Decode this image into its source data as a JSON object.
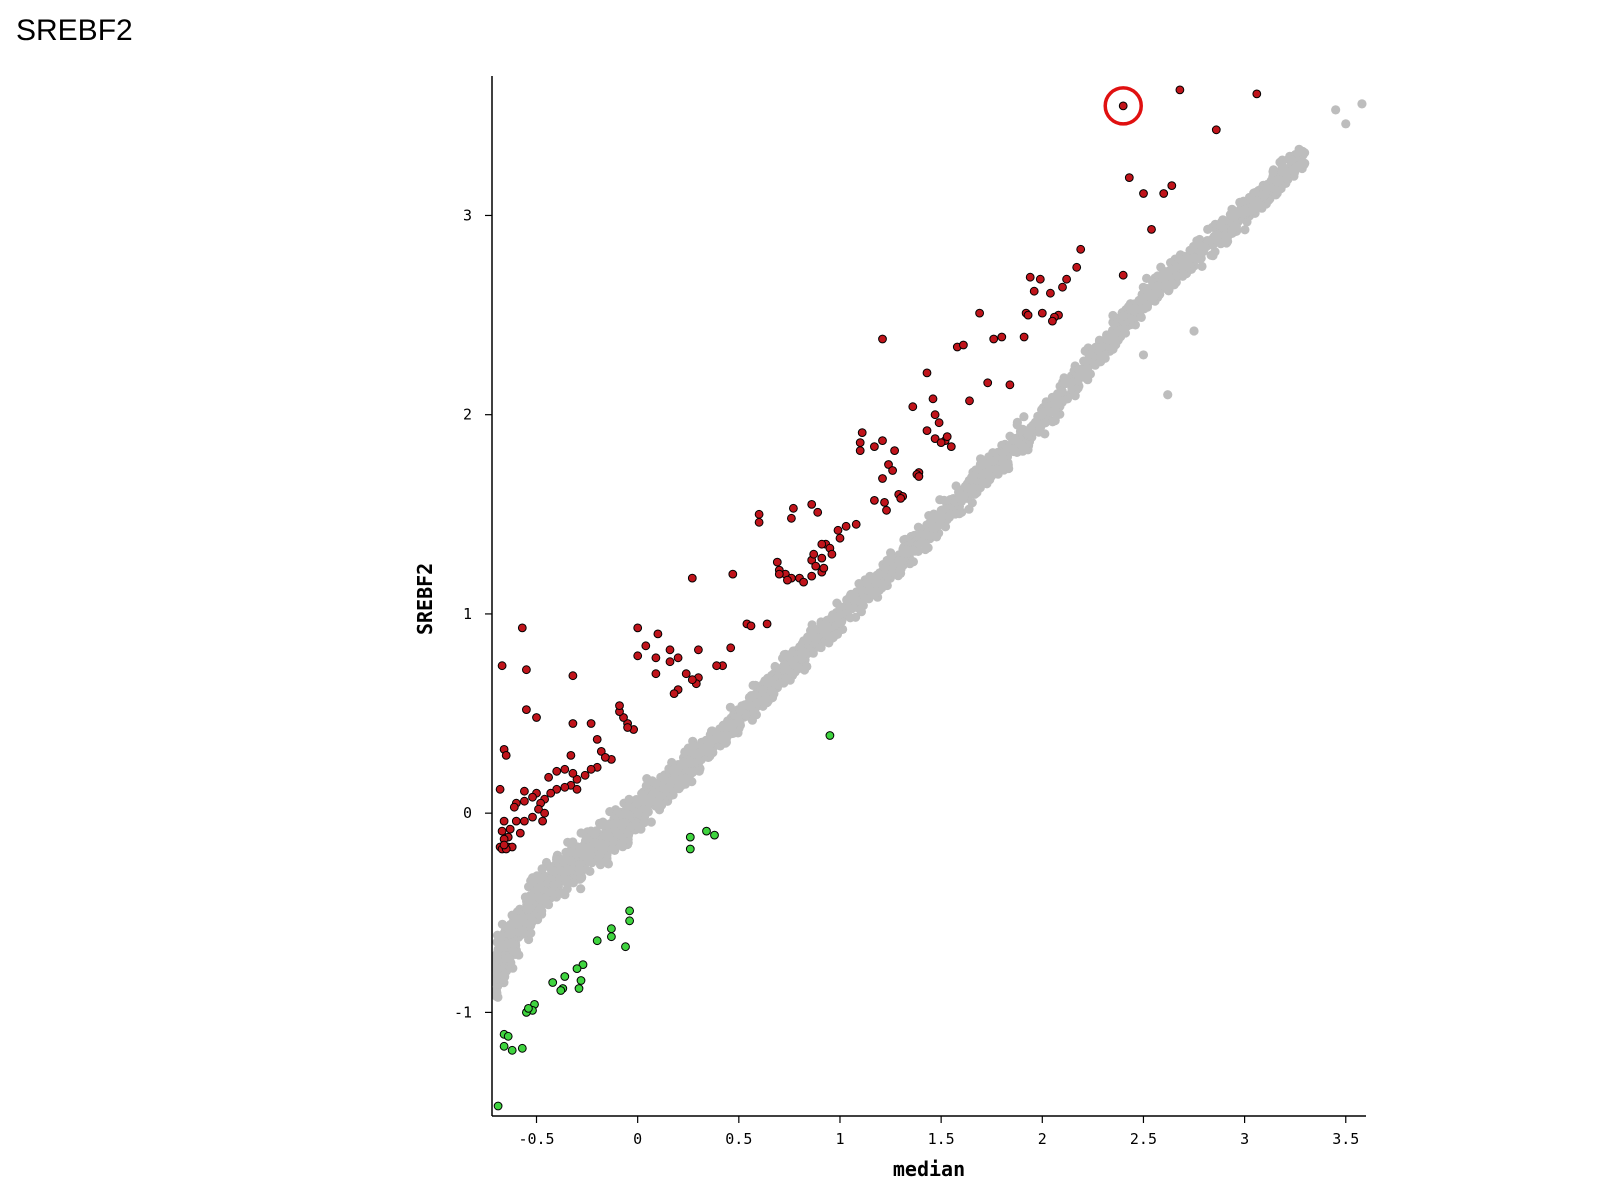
{
  "page_title": "SREBF2",
  "chart_data": {
    "type": "scatter",
    "title": "",
    "xlabel": "median",
    "ylabel": "SREBF2",
    "xlim": [
      -0.72,
      3.6
    ],
    "ylim": [
      -1.52,
      3.7
    ],
    "x_ticks": [
      "-0.5",
      "0",
      "0.5",
      "1",
      "1.5",
      "2",
      "2.5",
      "3",
      "3.5"
    ],
    "y_ticks": [
      "-1",
      "0",
      "1",
      "2",
      "3"
    ],
    "grid": false,
    "legend": "none",
    "colors": {
      "background_points": "#bdbdbd",
      "up": "#c0141b",
      "down": "#3fd43f",
      "highlight_circle": "#e01010"
    },
    "background_cloud": {
      "name": "",
      "color": "#bdbdbd",
      "trend": [
        [
          -0.7,
          -0.78
        ],
        [
          -0.5,
          -0.42
        ],
        [
          0,
          0.0
        ],
        [
          0.5,
          0.48
        ],
        [
          1,
          0.98
        ],
        [
          1.5,
          1.48
        ],
        [
          2,
          1.98
        ],
        [
          2.5,
          2.58
        ],
        [
          3,
          3.02
        ],
        [
          3.3,
          3.3
        ]
      ],
      "scattered_points": [
        [
          3.45,
          3.53
        ],
        [
          3.58,
          3.56
        ],
        [
          3.5,
          3.46
        ],
        [
          2.6,
          2.72
        ],
        [
          2.5,
          2.3
        ],
        [
          2.75,
          2.42
        ],
        [
          2.62,
          2.1
        ]
      ]
    },
    "series": [
      {
        "group": "up",
        "color": "#c0141b",
        "points": [
          [
            2.68,
            3.63
          ],
          [
            3.06,
            3.61
          ],
          [
            2.4,
            3.55
          ],
          [
            2.86,
            3.43
          ],
          [
            2.43,
            3.19
          ],
          [
            2.5,
            3.11
          ],
          [
            2.64,
            3.15
          ],
          [
            2.6,
            3.11
          ],
          [
            2.54,
            2.93
          ],
          [
            2.19,
            2.83
          ],
          [
            2.17,
            2.74
          ],
          [
            2.1,
            2.64
          ],
          [
            2.12,
            2.68
          ],
          [
            2.4,
            2.7
          ],
          [
            1.94,
            2.69
          ],
          [
            1.99,
            2.68
          ],
          [
            1.96,
            2.62
          ],
          [
            2.04,
            2.61
          ],
          [
            1.92,
            2.51
          ],
          [
            1.93,
            2.5
          ],
          [
            2.0,
            2.51
          ],
          [
            2.08,
            2.5
          ],
          [
            2.06,
            2.49
          ],
          [
            2.05,
            2.47
          ],
          [
            1.69,
            2.51
          ],
          [
            1.8,
            2.39
          ],
          [
            1.91,
            2.39
          ],
          [
            1.21,
            2.38
          ],
          [
            1.76,
            2.38
          ],
          [
            1.58,
            2.34
          ],
          [
            1.61,
            2.35
          ],
          [
            1.43,
            2.21
          ],
          [
            1.64,
            2.07
          ],
          [
            1.84,
            2.15
          ],
          [
            1.73,
            2.16
          ],
          [
            1.46,
            2.08
          ],
          [
            1.36,
            2.04
          ],
          [
            1.47,
            2.0
          ],
          [
            1.49,
            1.96
          ],
          [
            1.47,
            1.88
          ],
          [
            1.43,
            1.92
          ],
          [
            1.52,
            1.87
          ],
          [
            1.5,
            1.86
          ],
          [
            1.53,
            1.89
          ],
          [
            1.55,
            1.84
          ],
          [
            1.11,
            1.91
          ],
          [
            1.1,
            1.86
          ],
          [
            1.21,
            1.87
          ],
          [
            1.1,
            1.82
          ],
          [
            1.17,
            1.84
          ],
          [
            1.27,
            1.82
          ],
          [
            1.24,
            1.75
          ],
          [
            1.26,
            1.72
          ],
          [
            1.39,
            1.71
          ],
          [
            1.38,
            1.7
          ],
          [
            1.39,
            1.69
          ],
          [
            1.21,
            1.68
          ],
          [
            1.29,
            1.6
          ],
          [
            1.31,
            1.59
          ],
          [
            1.17,
            1.57
          ],
          [
            1.22,
            1.56
          ],
          [
            1.3,
            1.58
          ],
          [
            1.23,
            1.52
          ],
          [
            0.6,
            1.5
          ],
          [
            0.6,
            1.46
          ],
          [
            0.77,
            1.53
          ],
          [
            0.86,
            1.55
          ],
          [
            0.89,
            1.51
          ],
          [
            0.76,
            1.48
          ],
          [
            1.08,
            1.45
          ],
          [
            1.03,
            1.44
          ],
          [
            0.99,
            1.42
          ],
          [
            1.0,
            1.38
          ],
          [
            0.93,
            1.35
          ],
          [
            0.91,
            1.35
          ],
          [
            0.95,
            1.33
          ],
          [
            0.96,
            1.3
          ],
          [
            0.91,
            1.28
          ],
          [
            0.86,
            1.27
          ],
          [
            0.87,
            1.3
          ],
          [
            0.88,
            1.24
          ],
          [
            0.91,
            1.21
          ],
          [
            0.92,
            1.23
          ],
          [
            0.69,
            1.26
          ],
          [
            0.7,
            1.22
          ],
          [
            0.73,
            1.2
          ],
          [
            0.7,
            1.2
          ],
          [
            0.8,
            1.18
          ],
          [
            0.76,
            1.18
          ],
          [
            0.82,
            1.16
          ],
          [
            0.86,
            1.19
          ],
          [
            0.74,
            1.17
          ],
          [
            0.47,
            1.2
          ],
          [
            0.27,
            1.18
          ],
          [
            0.54,
            0.95
          ],
          [
            0.56,
            0.94
          ],
          [
            0.64,
            0.95
          ],
          [
            0.0,
            0.93
          ],
          [
            0.1,
            0.9
          ],
          [
            0.46,
            0.83
          ],
          [
            0.04,
            0.84
          ],
          [
            0.16,
            0.82
          ],
          [
            0.3,
            0.82
          ],
          [
            0.0,
            0.79
          ],
          [
            0.09,
            0.78
          ],
          [
            0.2,
            0.78
          ],
          [
            0.16,
            0.76
          ],
          [
            0.42,
            0.74
          ],
          [
            0.39,
            0.74
          ],
          [
            0.09,
            0.7
          ],
          [
            0.24,
            0.7
          ],
          [
            0.3,
            0.68
          ],
          [
            0.29,
            0.65
          ],
          [
            0.27,
            0.67
          ],
          [
            0.2,
            0.62
          ],
          [
            0.18,
            0.6
          ],
          [
            -0.57,
            0.93
          ],
          [
            -0.67,
            0.74
          ],
          [
            -0.55,
            0.72
          ],
          [
            -0.32,
            0.69
          ],
          [
            -0.55,
            0.52
          ],
          [
            -0.5,
            0.48
          ],
          [
            -0.32,
            0.45
          ],
          [
            -0.23,
            0.45
          ],
          [
            -0.05,
            0.45
          ],
          [
            -0.07,
            0.48
          ],
          [
            -0.02,
            0.42
          ],
          [
            -0.05,
            0.43
          ],
          [
            -0.09,
            0.51
          ],
          [
            -0.09,
            0.54
          ],
          [
            -0.66,
            0.32
          ],
          [
            -0.65,
            0.29
          ],
          [
            -0.33,
            0.29
          ],
          [
            -0.2,
            0.37
          ],
          [
            -0.18,
            0.31
          ],
          [
            -0.13,
            0.27
          ],
          [
            -0.16,
            0.28
          ],
          [
            -0.2,
            0.23
          ],
          [
            -0.23,
            0.22
          ],
          [
            -0.26,
            0.19
          ],
          [
            -0.3,
            0.17
          ],
          [
            -0.32,
            0.2
          ],
          [
            -0.36,
            0.22
          ],
          [
            -0.4,
            0.21
          ],
          [
            -0.44,
            0.18
          ],
          [
            -0.33,
            0.14
          ],
          [
            -0.3,
            0.12
          ],
          [
            -0.36,
            0.13
          ],
          [
            -0.4,
            0.12
          ],
          [
            -0.43,
            0.1
          ],
          [
            -0.46,
            0.07
          ],
          [
            -0.48,
            0.05
          ],
          [
            -0.5,
            0.1
          ],
          [
            -0.56,
            0.11
          ],
          [
            -0.68,
            0.12
          ],
          [
            -0.52,
            0.08
          ],
          [
            -0.56,
            0.06
          ],
          [
            -0.6,
            0.05
          ],
          [
            -0.61,
            0.03
          ],
          [
            -0.49,
            0.02
          ],
          [
            -0.46,
            0.0
          ],
          [
            -0.47,
            -0.04
          ],
          [
            -0.52,
            -0.02
          ],
          [
            -0.56,
            -0.04
          ],
          [
            -0.6,
            -0.04
          ],
          [
            -0.66,
            -0.04
          ],
          [
            -0.67,
            -0.09
          ],
          [
            -0.63,
            -0.08
          ],
          [
            -0.58,
            -0.1
          ],
          [
            -0.64,
            -0.12
          ],
          [
            -0.66,
            -0.13
          ],
          [
            -0.68,
            -0.17
          ],
          [
            -0.64,
            -0.17
          ],
          [
            -0.62,
            -0.17
          ],
          [
            -0.67,
            -0.18
          ],
          [
            -0.65,
            -0.18
          ],
          [
            -0.66,
            -0.16
          ]
        ]
      },
      {
        "group": "down",
        "color": "#3fd43f",
        "points": [
          [
            0.95,
            0.39
          ],
          [
            0.34,
            -0.09
          ],
          [
            0.38,
            -0.11
          ],
          [
            0.26,
            -0.12
          ],
          [
            0.26,
            -0.18
          ],
          [
            -0.04,
            -0.49
          ],
          [
            -0.04,
            -0.54
          ],
          [
            -0.13,
            -0.58
          ],
          [
            -0.13,
            -0.62
          ],
          [
            -0.2,
            -0.64
          ],
          [
            -0.06,
            -0.67
          ],
          [
            -0.27,
            -0.76
          ],
          [
            -0.3,
            -0.78
          ],
          [
            -0.28,
            -0.84
          ],
          [
            -0.36,
            -0.82
          ],
          [
            -0.42,
            -0.85
          ],
          [
            -0.37,
            -0.88
          ],
          [
            -0.29,
            -0.88
          ],
          [
            -0.38,
            -0.89
          ],
          [
            -0.51,
            -0.96
          ],
          [
            -0.52,
            -0.99
          ],
          [
            -0.55,
            -1.0
          ],
          [
            -0.54,
            -0.98
          ],
          [
            -0.66,
            -1.11
          ],
          [
            -0.64,
            -1.12
          ],
          [
            -0.66,
            -1.17
          ],
          [
            -0.62,
            -1.19
          ],
          [
            -0.57,
            -1.18
          ],
          [
            -0.69,
            -1.47
          ]
        ]
      }
    ],
    "highlighted_point": [
      2.4,
      3.55
    ]
  }
}
